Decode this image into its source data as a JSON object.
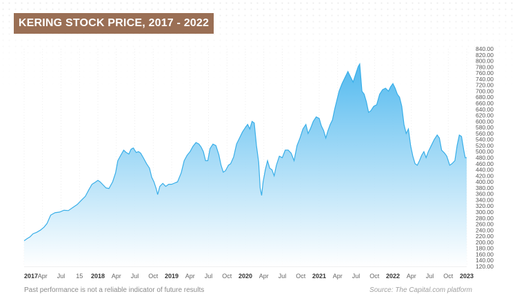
{
  "title": "KERING STOCK PRICE, 2017 - 2022",
  "footer": {
    "disclaimer": "Past performance is not a reliable indicator of future results",
    "source": "Source: The Capital.com platform"
  },
  "colors": {
    "badge": "#9a6f55",
    "line": "#38aee8",
    "area_top": "#4ab6ee",
    "area_bottom": "#ffffff"
  },
  "chart_data": {
    "type": "area",
    "title": "KERING STOCK PRICE, 2017 - 2022",
    "xlabel": "",
    "ylabel": "",
    "ylim": [
      120,
      840
    ],
    "y_ticks": [
      120,
      140,
      160,
      180,
      200,
      220,
      240,
      260,
      280,
      300,
      320,
      340,
      360,
      380,
      400,
      420,
      440,
      460,
      480,
      500,
      520,
      540,
      560,
      580,
      600,
      620,
      640,
      660,
      680,
      700,
      720,
      740,
      760,
      780,
      800,
      820,
      840
    ],
    "y_tick_labels": [
      "120.00",
      "140.00",
      "160.00",
      "180.00",
      "200.00",
      "220.00",
      "240.00",
      "260.00",
      "280.00",
      "300.00",
      "320.00",
      "340.00",
      "360.00",
      "380.00",
      "400.00",
      "420.00",
      "440.00",
      "460.00",
      "480.00",
      "500.00",
      "520.00",
      "540.00",
      "560.00",
      "580.00",
      "600.00",
      "620.00",
      "640.00",
      "660.00",
      "680.00",
      "700.00",
      "720.00",
      "740.00",
      "760.00",
      "780.00",
      "800.00",
      "820.00",
      "840.00"
    ],
    "x_tick_labels": [
      {
        "label": "2017",
        "t": 2017.0,
        "bold": true
      },
      {
        "label": "Apr",
        "t": 2017.25,
        "bold": false
      },
      {
        "label": "Jul",
        "t": 2017.5,
        "bold": false
      },
      {
        "label": "15",
        "t": 2017.75,
        "bold": false
      },
      {
        "label": "2018",
        "t": 2018.0,
        "bold": true
      },
      {
        "label": "Apr",
        "t": 2018.25,
        "bold": false
      },
      {
        "label": "Jul",
        "t": 2018.5,
        "bold": false
      },
      {
        "label": "Oct",
        "t": 2018.75,
        "bold": false
      },
      {
        "label": "2019",
        "t": 2019.0,
        "bold": true
      },
      {
        "label": "Apr",
        "t": 2019.25,
        "bold": false
      },
      {
        "label": "Jul",
        "t": 2019.5,
        "bold": false
      },
      {
        "label": "Oct",
        "t": 2019.75,
        "bold": false
      },
      {
        "label": "2020",
        "t": 2020.0,
        "bold": true
      },
      {
        "label": "Apr",
        "t": 2020.25,
        "bold": false
      },
      {
        "label": "Jul",
        "t": 2020.5,
        "bold": false
      },
      {
        "label": "Oct",
        "t": 2020.75,
        "bold": false
      },
      {
        "label": "2021",
        "t": 2021.0,
        "bold": true
      },
      {
        "label": "Apr",
        "t": 2021.25,
        "bold": false
      },
      {
        "label": "Jul",
        "t": 2021.5,
        "bold": false
      },
      {
        "label": "Oct",
        "t": 2021.75,
        "bold": false
      },
      {
        "label": "2022",
        "t": 2022.0,
        "bold": true
      },
      {
        "label": "Apr",
        "t": 2022.25,
        "bold": false
      },
      {
        "label": "Jul",
        "t": 2022.5,
        "bold": false
      },
      {
        "label": "Oct",
        "t": 2022.75,
        "bold": false
      },
      {
        "label": "2023",
        "t": 2023.0,
        "bold": true
      }
    ],
    "series": [
      {
        "points": [
          [
            2017.0,
            205
          ],
          [
            2017.04,
            212
          ],
          [
            2017.08,
            218
          ],
          [
            2017.12,
            228
          ],
          [
            2017.17,
            233
          ],
          [
            2017.22,
            240
          ],
          [
            2017.27,
            250
          ],
          [
            2017.31,
            262
          ],
          [
            2017.36,
            290
          ],
          [
            2017.42,
            298
          ],
          [
            2017.48,
            300
          ],
          [
            2017.54,
            306
          ],
          [
            2017.6,
            305
          ],
          [
            2017.66,
            315
          ],
          [
            2017.72,
            325
          ],
          [
            2017.78,
            340
          ],
          [
            2017.83,
            352
          ],
          [
            2017.88,
            375
          ],
          [
            2017.92,
            392
          ],
          [
            2017.96,
            398
          ],
          [
            2018.0,
            405
          ],
          [
            2018.03,
            400
          ],
          [
            2018.07,
            390
          ],
          [
            2018.11,
            380
          ],
          [
            2018.15,
            378
          ],
          [
            2018.2,
            400
          ],
          [
            2018.24,
            430
          ],
          [
            2018.27,
            470
          ],
          [
            2018.31,
            488
          ],
          [
            2018.35,
            505
          ],
          [
            2018.38,
            498
          ],
          [
            2018.42,
            492
          ],
          [
            2018.45,
            508
          ],
          [
            2018.48,
            512
          ],
          [
            2018.52,
            497
          ],
          [
            2018.55,
            500
          ],
          [
            2018.58,
            495
          ],
          [
            2018.62,
            478
          ],
          [
            2018.66,
            460
          ],
          [
            2018.7,
            445
          ],
          [
            2018.73,
            415
          ],
          [
            2018.76,
            400
          ],
          [
            2018.79,
            378
          ],
          [
            2018.81,
            358
          ],
          [
            2018.84,
            385
          ],
          [
            2018.88,
            395
          ],
          [
            2018.92,
            385
          ],
          [
            2018.96,
            392
          ],
          [
            2019.0,
            392
          ],
          [
            2019.04,
            396
          ],
          [
            2019.08,
            400
          ],
          [
            2019.13,
            430
          ],
          [
            2019.17,
            470
          ],
          [
            2019.21,
            488
          ],
          [
            2019.25,
            500
          ],
          [
            2019.29,
            518
          ],
          [
            2019.33,
            530
          ],
          [
            2019.37,
            525
          ],
          [
            2019.4,
            515
          ],
          [
            2019.43,
            500
          ],
          [
            2019.46,
            470
          ],
          [
            2019.49,
            470
          ],
          [
            2019.52,
            510
          ],
          [
            2019.56,
            525
          ],
          [
            2019.6,
            520
          ],
          [
            2019.64,
            490
          ],
          [
            2019.67,
            455
          ],
          [
            2019.7,
            432
          ],
          [
            2019.73,
            437
          ],
          [
            2019.77,
            455
          ],
          [
            2019.8,
            460
          ],
          [
            2019.84,
            482
          ],
          [
            2019.88,
            525
          ],
          [
            2019.92,
            545
          ],
          [
            2019.96,
            565
          ],
          [
            2020.0,
            580
          ],
          [
            2020.03,
            590
          ],
          [
            2020.06,
            575
          ],
          [
            2020.09,
            600
          ],
          [
            2020.12,
            595
          ],
          [
            2020.15,
            520
          ],
          [
            2020.18,
            465
          ],
          [
            2020.2,
            380
          ],
          [
            2020.22,
            355
          ],
          [
            2020.24,
            400
          ],
          [
            2020.27,
            440
          ],
          [
            2020.3,
            470
          ],
          [
            2020.33,
            445
          ],
          [
            2020.36,
            440
          ],
          [
            2020.39,
            420
          ],
          [
            2020.42,
            455
          ],
          [
            2020.46,
            485
          ],
          [
            2020.5,
            480
          ],
          [
            2020.54,
            505
          ],
          [
            2020.58,
            505
          ],
          [
            2020.62,
            495
          ],
          [
            2020.66,
            470
          ],
          [
            2020.7,
            520
          ],
          [
            2020.74,
            545
          ],
          [
            2020.78,
            575
          ],
          [
            2020.82,
            590
          ],
          [
            2020.85,
            560
          ],
          [
            2020.88,
            575
          ],
          [
            2020.92,
            600
          ],
          [
            2020.96,
            615
          ],
          [
            2021.0,
            610
          ],
          [
            2021.03,
            585
          ],
          [
            2021.06,
            570
          ],
          [
            2021.09,
            545
          ],
          [
            2021.12,
            570
          ],
          [
            2021.15,
            590
          ],
          [
            2021.18,
            605
          ],
          [
            2021.21,
            640
          ],
          [
            2021.24,
            670
          ],
          [
            2021.27,
            700
          ],
          [
            2021.31,
            725
          ],
          [
            2021.35,
            745
          ],
          [
            2021.39,
            765
          ],
          [
            2021.42,
            750
          ],
          [
            2021.46,
            730
          ],
          [
            2021.5,
            760
          ],
          [
            2021.53,
            782
          ],
          [
            2021.55,
            790
          ],
          [
            2021.58,
            700
          ],
          [
            2021.61,
            690
          ],
          [
            2021.64,
            665
          ],
          [
            2021.67,
            630
          ],
          [
            2021.7,
            635
          ],
          [
            2021.74,
            650
          ],
          [
            2021.78,
            655
          ],
          [
            2021.82,
            690
          ],
          [
            2021.86,
            705
          ],
          [
            2021.9,
            710
          ],
          [
            2021.94,
            700
          ],
          [
            2021.97,
            715
          ],
          [
            2022.0,
            725
          ],
          [
            2022.03,
            710
          ],
          [
            2022.06,
            690
          ],
          [
            2022.09,
            680
          ],
          [
            2022.12,
            650
          ],
          [
            2022.15,
            590
          ],
          [
            2022.18,
            560
          ],
          [
            2022.21,
            575
          ],
          [
            2022.24,
            520
          ],
          [
            2022.27,
            485
          ],
          [
            2022.3,
            460
          ],
          [
            2022.33,
            455
          ],
          [
            2022.36,
            470
          ],
          [
            2022.39,
            488
          ],
          [
            2022.42,
            500
          ],
          [
            2022.45,
            480
          ],
          [
            2022.48,
            500
          ],
          [
            2022.52,
            520
          ],
          [
            2022.56,
            540
          ],
          [
            2022.6,
            555
          ],
          [
            2022.63,
            545
          ],
          [
            2022.66,
            505
          ],
          [
            2022.7,
            495
          ],
          [
            2022.73,
            485
          ],
          [
            2022.77,
            455
          ],
          [
            2022.8,
            460
          ],
          [
            2022.84,
            470
          ],
          [
            2022.87,
            520
          ],
          [
            2022.9,
            555
          ],
          [
            2022.93,
            550
          ],
          [
            2022.96,
            505
          ],
          [
            2022.98,
            480
          ],
          [
            2023.0,
            480
          ]
        ]
      }
    ]
  }
}
